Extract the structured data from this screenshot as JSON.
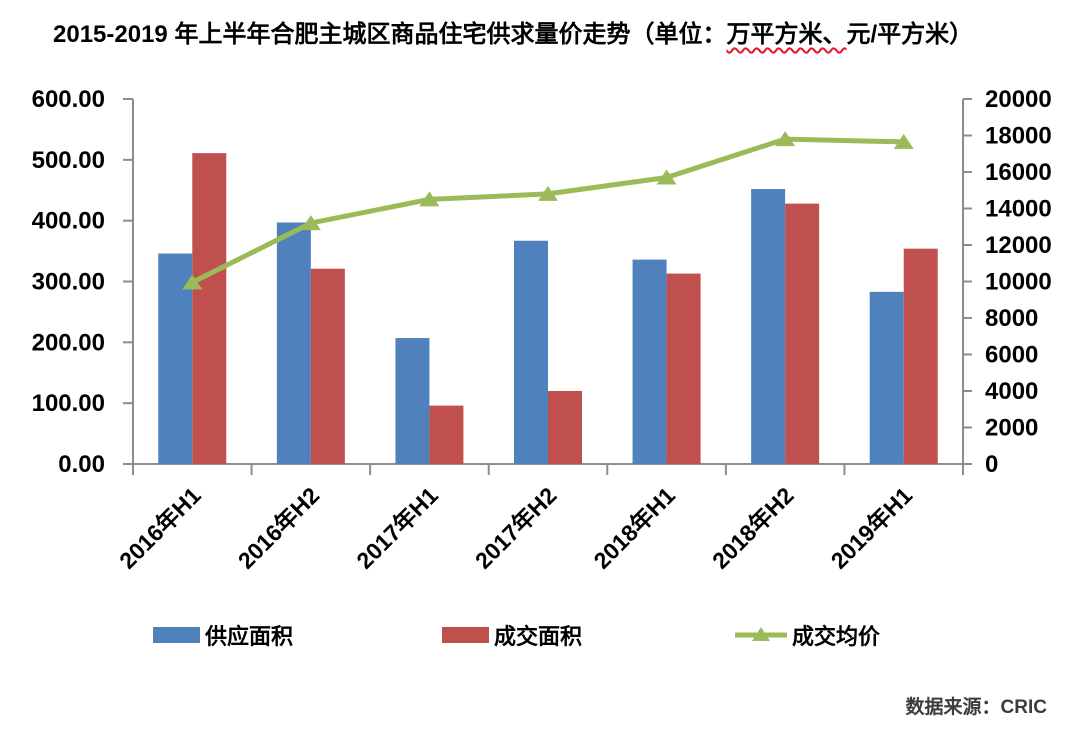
{
  "title": {
    "prefix": "2015-2019 年上半年合肥主城区商品住宅供求量价走势（单位：",
    "underlined": "万平方米、",
    "suffix": "元/平方米）"
  },
  "chart_data": {
    "type": "combo-bar-line",
    "categories": [
      "2016年H1",
      "2016年H2",
      "2017年H1",
      "2017年H2",
      "2018年H1",
      "2018年H2",
      "2019年H1"
    ],
    "series": [
      {
        "name": "供应面积",
        "type": "bar",
        "axis": "left",
        "color": "#4F81BD",
        "values": [
          346,
          397,
          207,
          367,
          336,
          452,
          283
        ]
      },
      {
        "name": "成交面积",
        "type": "bar",
        "axis": "left",
        "color": "#C0504D",
        "values": [
          511,
          321,
          96,
          120,
          313,
          428,
          354
        ]
      },
      {
        "name": "成交均价",
        "type": "line",
        "axis": "right",
        "color": "#9BBB59",
        "values": [
          9950,
          13200,
          14500,
          14800,
          15700,
          17800,
          17650
        ]
      }
    ],
    "left_axis": {
      "min": 0,
      "max": 600,
      "step": 100,
      "tick_labels": [
        "0.00",
        "100.00",
        "200.00",
        "300.00",
        "400.00",
        "500.00",
        "600.00"
      ]
    },
    "right_axis": {
      "min": 0,
      "max": 20000,
      "step": 2000,
      "tick_labels": [
        "0",
        "2000",
        "4000",
        "6000",
        "8000",
        "10000",
        "12000",
        "14000",
        "16000",
        "18000",
        "20000"
      ]
    },
    "grid": false,
    "legend_position": "bottom",
    "x_label_rotation_deg": -45
  },
  "source": "数据来源：CRIC",
  "colors": {
    "bar_blue": "#4F81BD",
    "bar_red": "#C0504D",
    "line_green": "#9BBB59",
    "axis_gray": "#8C8C8C",
    "text_black": "#000000",
    "squiggle_red": "#E8112D"
  }
}
